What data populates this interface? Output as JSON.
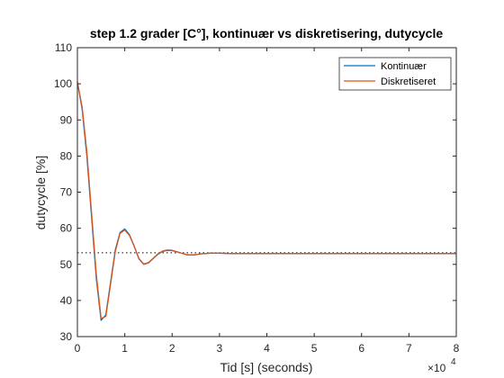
{
  "chart_data": {
    "type": "line",
    "title": "step 1.2 grader [C°], kontinuær vs diskretisering, dutycycle",
    "xlabel": "Tid [s] (seconds)",
    "ylabel": "dutycycle [%]",
    "x_exponent_label": "×10",
    "x_exponent_power": "4",
    "xlim": [
      0,
      8
    ],
    "ylim": [
      30,
      110
    ],
    "x_ticks": [
      0,
      1,
      2,
      3,
      4,
      5,
      6,
      7,
      8
    ],
    "y_ticks": [
      30,
      40,
      50,
      60,
      70,
      80,
      90,
      100,
      110
    ],
    "x_tick_labels": [
      "0",
      "1",
      "2",
      "3",
      "4",
      "5",
      "6",
      "7",
      "8"
    ],
    "y_tick_labels": [
      "30",
      "40",
      "50",
      "60",
      "70",
      "80",
      "90",
      "100",
      "110"
    ],
    "grid": false,
    "legend_position": "top-right",
    "reference_line": {
      "y": 53.2,
      "style": "dotted",
      "color": "#000000"
    },
    "series": [
      {
        "name": "Kontinuær",
        "color": "#0072BD",
        "x": [
          0,
          0.1,
          0.2,
          0.3,
          0.4,
          0.5,
          0.6,
          0.7,
          0.8,
          0.9,
          1.0,
          1.1,
          1.2,
          1.3,
          1.4,
          1.5,
          1.6,
          1.7,
          1.8,
          1.9,
          2.0,
          2.1,
          2.2,
          2.3,
          2.4,
          2.5,
          2.6,
          2.8,
          3.0,
          3.2,
          3.5,
          4.0,
          5.0,
          6.0,
          7.0,
          8.0
        ],
        "y": [
          100.5,
          93,
          80,
          63,
          46,
          34.5,
          36,
          45,
          54,
          58.8,
          59.8,
          58.2,
          55,
          51.5,
          50,
          50.4,
          51.6,
          52.8,
          53.6,
          53.9,
          53.8,
          53.5,
          53.1,
          52.7,
          52.6,
          52.7,
          52.9,
          53.1,
          53.1,
          53.0,
          53.0,
          53.0,
          53.0,
          53.0,
          53.0,
          53.0
        ]
      },
      {
        "name": "Diskretiseret",
        "color": "#D95319",
        "x": [
          0,
          0.1,
          0.2,
          0.3,
          0.4,
          0.5,
          0.6,
          0.7,
          0.8,
          0.9,
          1.0,
          1.1,
          1.2,
          1.3,
          1.4,
          1.5,
          1.6,
          1.7,
          1.8,
          1.9,
          2.0,
          2.1,
          2.2,
          2.3,
          2.4,
          2.5,
          2.6,
          2.8,
          3.0,
          3.2,
          3.5,
          4.0,
          5.0,
          6.0,
          7.0,
          8.0
        ],
        "y": [
          100.5,
          93.5,
          81,
          64,
          47,
          35,
          35.6,
          44.5,
          53.6,
          58.6,
          59.5,
          58.0,
          55,
          51.6,
          50.1,
          50.5,
          51.7,
          52.9,
          53.7,
          54.0,
          53.9,
          53.5,
          53.1,
          52.7,
          52.6,
          52.7,
          52.9,
          53.1,
          53.1,
          53.0,
          53.0,
          53.0,
          53.0,
          53.0,
          53.0,
          53.0
        ]
      }
    ]
  }
}
